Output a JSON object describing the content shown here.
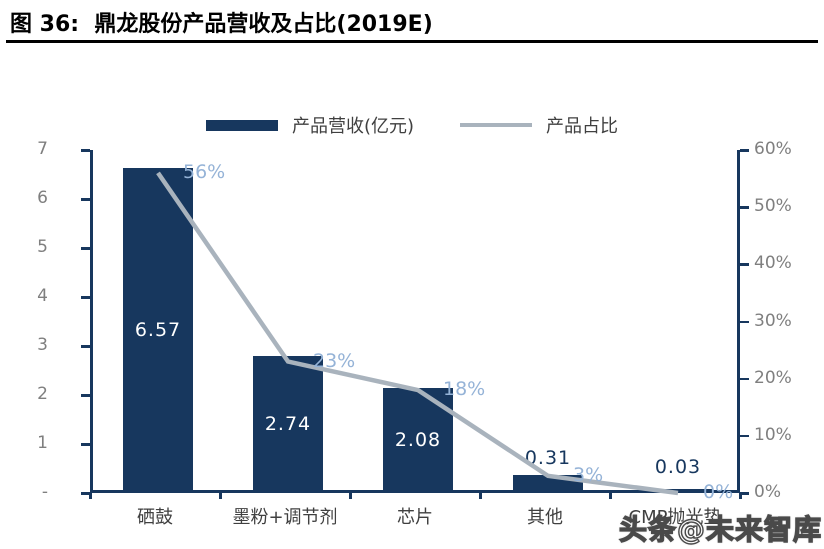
{
  "header": {
    "title": "图 36:  鼎龙股份产品营收及占比(2019E)"
  },
  "legend": {
    "bar_label": "产品营收(亿元)",
    "line_label": "产品占比"
  },
  "watermark": {
    "text": "头条@未来智库"
  },
  "colors": {
    "bar": "#17375E",
    "line": "#A9B3BD",
    "pct_label": "#95B3D7",
    "axis": "#17375E",
    "axis_tick_text": "#7F7F7F",
    "category_text": "#404040",
    "bar_label_inside": "#FFFFFF",
    "bar_label_outside": "#17375E",
    "title_text": "#000000"
  },
  "chart_data": {
    "type": "bar+line combo",
    "title": "鼎龙股份产品营收及占比(2019E)",
    "categories": [
      "硒鼓",
      "墨粉+调节剂",
      "芯片",
      "其他",
      "CMP抛光垫"
    ],
    "series": [
      {
        "name": "产品营收(亿元)",
        "type": "bar",
        "axis": "left",
        "values": [
          6.57,
          2.74,
          2.08,
          0.31,
          0.03
        ],
        "labels": [
          "6.57",
          "2.74",
          "2.08",
          "0.31",
          "0.03"
        ]
      },
      {
        "name": "产品占比",
        "type": "line",
        "axis": "right",
        "values": [
          56,
          23,
          18,
          3,
          0
        ],
        "labels": [
          "56%",
          "23%",
          "18%",
          "3%",
          "0%"
        ]
      }
    ],
    "left_axis": {
      "tick_labels": [
        "7",
        "6",
        "5",
        "4",
        "3",
        "2",
        "1",
        "-"
      ],
      "min": 0,
      "max": 7
    },
    "right_axis": {
      "tick_labels": [
        "60%",
        "50%",
        "40%",
        "30%",
        "20%",
        "10%",
        "0%"
      ],
      "min": 0,
      "max": 60
    },
    "grid": false,
    "legend_position": "top-center"
  }
}
